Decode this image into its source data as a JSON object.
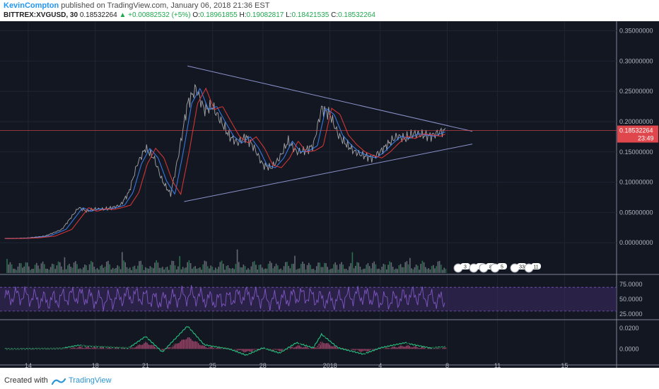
{
  "header": {
    "author": "KevinCompton",
    "published_text": "published on TradingView.com, January 06, 2018 21:36 EST",
    "symbol_interval": "BITTREX:XVGUSD, 30",
    "last": "0.18532264",
    "change": "+0.00882532 (+5%)",
    "o_label": "O:",
    "o_value": "0.18961855",
    "h_label": "H:",
    "h_value": "0.19082817",
    "l_label": "L:",
    "l_value": "0.18421535",
    "c_label": "C:",
    "c_value": "0.18532264"
  },
  "footer": {
    "created": "Created with",
    "brand": "TradingView"
  },
  "colors": {
    "background": "#131722",
    "price": "#bdbdbd",
    "ma_fast": "#3b82f6",
    "ma_slow": "#e53935",
    "rsi": "#7e57c2",
    "rsi_band": "#3a2860",
    "macd": "#26c281",
    "macd_hist": "#e05b8a",
    "last_price_bg": "#e0474c"
  },
  "chart_data": [
    {
      "type": "line",
      "pane": "price",
      "x": [
        "14",
        "18",
        "21",
        "25",
        "28",
        "2018",
        "4",
        "8",
        "11",
        "15"
      ],
      "ylim": [
        -0.05,
        0.36
      ],
      "y_ticks": [
        "0.35000000",
        "0.30000000",
        "0.25000000",
        "0.20000000",
        "0.15000000",
        "0.10000000",
        "0.05000000",
        "0.00000000"
      ],
      "price_path": [
        [
          13,
          0.007
        ],
        [
          14,
          0.008
        ],
        [
          15,
          0.011
        ],
        [
          16,
          0.022
        ],
        [
          16.5,
          0.04
        ],
        [
          17,
          0.058
        ],
        [
          17.5,
          0.052
        ],
        [
          18,
          0.056
        ],
        [
          18.5,
          0.055
        ],
        [
          19,
          0.058
        ],
        [
          19.5,
          0.062
        ],
        [
          20,
          0.083
        ],
        [
          20.5,
          0.13
        ],
        [
          21,
          0.156
        ],
        [
          21.5,
          0.14
        ],
        [
          22,
          0.102
        ],
        [
          22.5,
          0.08
        ],
        [
          23,
          0.15
        ],
        [
          23.5,
          0.23
        ],
        [
          24,
          0.255
        ],
        [
          24.5,
          0.22
        ],
        [
          25,
          0.225
        ],
        [
          25.5,
          0.2
        ],
        [
          26,
          0.176
        ],
        [
          26.5,
          0.165
        ],
        [
          27,
          0.175
        ],
        [
          27.5,
          0.156
        ],
        [
          28,
          0.128
        ],
        [
          28.5,
          0.124
        ],
        [
          29,
          0.14
        ],
        [
          29.5,
          0.168
        ],
        [
          30,
          0.15
        ],
        [
          30.5,
          0.152
        ],
        [
          31,
          0.16
        ],
        [
          31.5,
          0.222
        ],
        [
          32,
          0.212
        ],
        [
          32.5,
          0.178
        ],
        [
          33,
          0.162
        ],
        [
          33.5,
          0.15
        ],
        [
          34,
          0.144
        ],
        [
          34.5,
          0.14
        ],
        [
          35,
          0.15
        ],
        [
          35.5,
          0.164
        ],
        [
          36,
          0.176
        ],
        [
          36.5,
          0.172
        ],
        [
          37,
          0.18
        ],
        [
          37.5,
          0.178
        ],
        [
          38,
          0.176
        ],
        [
          38.5,
          0.182
        ],
        [
          38.9,
          0.185
        ]
      ],
      "trendline_upper": [
        [
          23.5,
          0.292
        ],
        [
          40.5,
          0.184
        ]
      ],
      "trendline_lower": [
        [
          23.3,
          0.068
        ],
        [
          40.5,
          0.163
        ]
      ],
      "last_price": "0.18532264",
      "countdown": "23:49",
      "event_badges": [
        "3",
        "2",
        "8",
        "5",
        "33",
        "11"
      ]
    },
    {
      "type": "line",
      "pane": "rsi",
      "ylim": [
        18,
        88
      ],
      "y_ticks": [
        "75.0000",
        "50.0000",
        "25.0000"
      ],
      "band": [
        30,
        70
      ]
    },
    {
      "type": "line",
      "pane": "macd",
      "ylim": [
        -0.014,
        0.026
      ],
      "y_ticks": [
        "0.0200",
        "0.0000"
      ],
      "macd_path": [
        [
          13,
          0.0
        ],
        [
          16,
          0.0005
        ],
        [
          17,
          0.0035
        ],
        [
          18,
          0.0025
        ],
        [
          20,
          0.001
        ],
        [
          21,
          0.012
        ],
        [
          22,
          -0.003
        ],
        [
          23.5,
          0.022
        ],
        [
          24.5,
          0.004
        ],
        [
          26,
          0.0
        ],
        [
          27,
          -0.006
        ],
        [
          28,
          0.001
        ],
        [
          29,
          -0.004
        ],
        [
          30,
          0.006
        ],
        [
          31,
          0.001
        ],
        [
          31.5,
          0.014
        ],
        [
          32.5,
          0.001
        ],
        [
          34,
          -0.005
        ],
        [
          35,
          0.001
        ],
        [
          36.5,
          0.006
        ],
        [
          37,
          0.004
        ],
        [
          38,
          0.001
        ],
        [
          38.9,
          0.002
        ]
      ]
    }
  ]
}
